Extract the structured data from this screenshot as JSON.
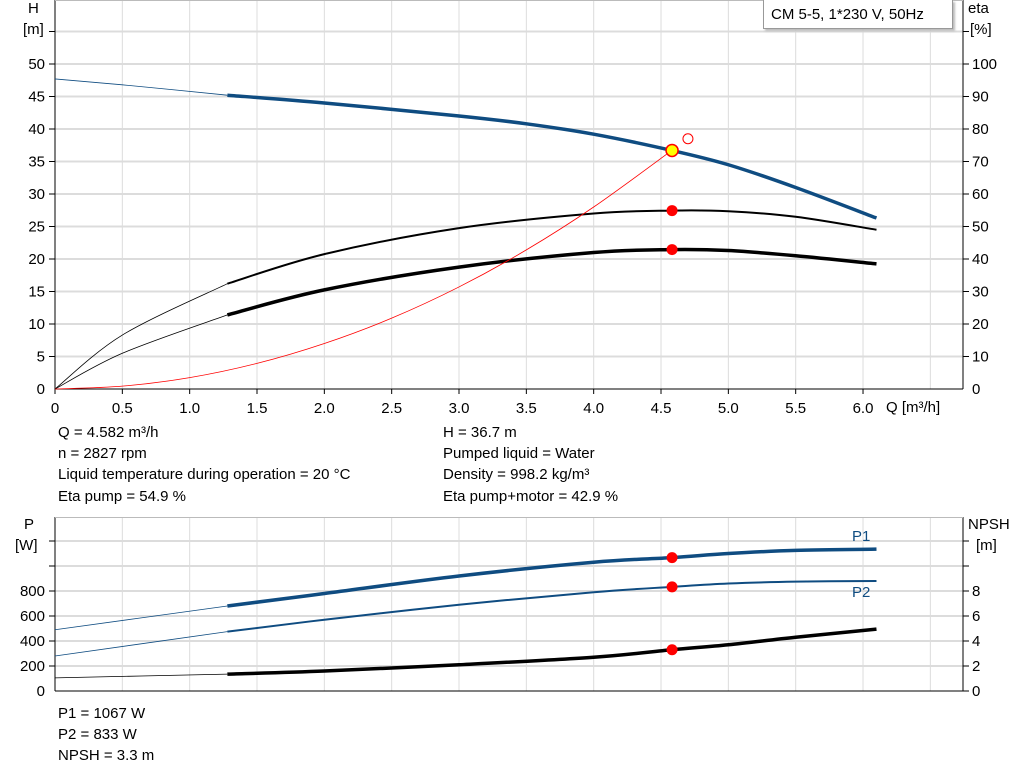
{
  "chart_data": [
    {
      "type": "line",
      "legend_box": "CM 5-5, 1*230 V, 50Hz",
      "xlabel": "Q [m³/h]",
      "ylabel_left": [
        "H",
        "[m]"
      ],
      "ylabel_right": [
        "eta",
        "[%]"
      ],
      "xlim": [
        0,
        6.75
      ],
      "ylim_left": [
        0,
        60
      ],
      "ylim_right": [
        0,
        120
      ],
      "grid": true,
      "x_ticks": [
        "0",
        "0.5",
        "1.0",
        "1.5",
        "2.0",
        "2.5",
        "3.0",
        "3.5",
        "4.0",
        "4.5",
        "5.0",
        "5.5",
        "6.0"
      ],
      "y_ticks_left": [
        "0",
        "5",
        "10",
        "15",
        "20",
        "25",
        "30",
        "35",
        "40",
        "45",
        "50"
      ],
      "y_ticks_right": [
        "0",
        "10",
        "20",
        "30",
        "40",
        "50",
        "60",
        "70",
        "80",
        "90",
        "100"
      ],
      "series": [
        {
          "axis": "left",
          "color": "#0f4c81",
          "thick_from": 1.28,
          "x": [
            0,
            0.5,
            1.28,
            2,
            3,
            3.5,
            4,
            4.58,
            5,
            5.5,
            6.1
          ],
          "y": [
            47.7,
            46.8,
            45.2,
            44.0,
            42.0,
            40.8,
            39.2,
            36.7,
            34.5,
            31.0,
            26.3
          ]
        },
        {
          "axis": "right",
          "color": "#000000",
          "thick_from": 1.28,
          "width": 2,
          "x": [
            0,
            0.5,
            1.28,
            2,
            3,
            4,
            4.58,
            5,
            5.5,
            6.1
          ],
          "y": [
            0,
            16.6,
            32.4,
            41.5,
            49.5,
            54.0,
            54.9,
            54.7,
            53.0,
            49.0
          ]
        },
        {
          "axis": "right",
          "color": "#000000",
          "thick_from": 1.28,
          "width": 3.5,
          "x": [
            0,
            0.5,
            1.28,
            2,
            3,
            4,
            4.58,
            5,
            5.5,
            6.1
          ],
          "y": [
            0,
            11.0,
            22.8,
            30.5,
            37.5,
            42.0,
            42.9,
            42.6,
            41.0,
            38.5
          ]
        },
        {
          "axis": "left",
          "color": "#ff0000",
          "thin": true,
          "x": [
            0,
            0.5,
            1,
            1.5,
            2,
            2.5,
            3,
            3.5,
            4,
            4.58
          ],
          "y": [
            0,
            0.44,
            1.75,
            3.94,
            7.0,
            10.9,
            15.7,
            21.4,
            28.0,
            36.7
          ]
        }
      ],
      "duty_point": {
        "q": 4.582,
        "h": 36.7,
        "eta_pump": 54.9,
        "eta_total": 42.9
      },
      "requested_point": {
        "q": 4.7,
        "h": 38.5
      }
    },
    {
      "type": "line",
      "ylabel_left": [
        "P",
        "[W]"
      ],
      "ylabel_right": [
        "NPSH",
        "[m]"
      ],
      "xlim": [
        0,
        6.75
      ],
      "ylim_left": [
        0,
        1400
      ],
      "ylim_right": [
        0,
        14
      ],
      "grid": true,
      "y_ticks_left": [
        "0",
        "200",
        "400",
        "600",
        "800"
      ],
      "y_ticks_right": [
        "0",
        "2",
        "4",
        "6",
        "8"
      ],
      "series": [
        {
          "name": "P1",
          "axis": "left",
          "color": "#0f4c81",
          "thick_from": 1.28,
          "width": 3.5,
          "x": [
            0,
            1.28,
            2,
            3,
            4,
            4.58,
            5,
            5.5,
            6.1
          ],
          "y": [
            490,
            680,
            780,
            920,
            1030,
            1067,
            1100,
            1125,
            1135
          ]
        },
        {
          "name": "P2",
          "axis": "left",
          "color": "#0f4c81",
          "thick_from": 1.28,
          "width": 2,
          "x": [
            0,
            1.28,
            2,
            3,
            4,
            4.58,
            5,
            5.5,
            6.1
          ],
          "y": [
            280,
            475,
            570,
            690,
            790,
            833,
            860,
            875,
            880
          ]
        },
        {
          "axis": "right",
          "color": "#000000",
          "thick_from": 1.28,
          "width": 3.5,
          "x": [
            0,
            1.28,
            2,
            3,
            4,
            4.58,
            5,
            5.5,
            6.1
          ],
          "y": [
            1.05,
            1.35,
            1.6,
            2.1,
            2.7,
            3.3,
            3.7,
            4.3,
            4.95
          ]
        }
      ],
      "duty_point": {
        "q": 4.582,
        "p1": 1067,
        "p2": 833,
        "npsh": 3.3
      }
    }
  ],
  "info": {
    "col1": [
      "Q = 4.582 m³/h",
      "n = 2827 rpm",
      "Liquid temperature during operation = 20 °C",
      "Eta pump = 54.9 %"
    ],
    "col2": [
      "H = 36.7 m",
      "Pumped liquid = Water",
      "Density = 998.2 kg/m³",
      "Eta pump+motor = 42.9 %"
    ],
    "bottom": [
      "P1 = 1067 W",
      "P2 = 833 W",
      "NPSH = 3.3 m"
    ]
  }
}
